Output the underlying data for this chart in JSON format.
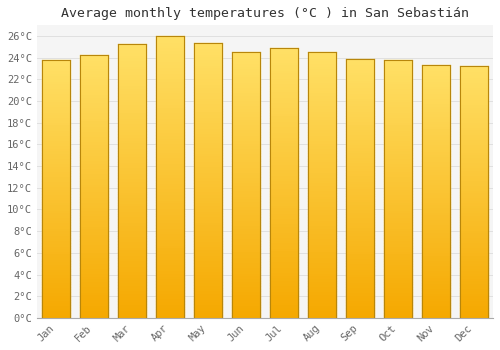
{
  "title": "Average monthly temperatures (°C ) in San Sebastián",
  "months": [
    "Jan",
    "Feb",
    "Mar",
    "Apr",
    "May",
    "Jun",
    "Jul",
    "Aug",
    "Sep",
    "Oct",
    "Nov",
    "Dec"
  ],
  "values": [
    23.8,
    24.3,
    25.3,
    26.0,
    25.4,
    24.5,
    24.9,
    24.5,
    23.9,
    23.8,
    23.3,
    23.2
  ],
  "bar_color_bottom": "#F5A800",
  "bar_color_top": "#FFE066",
  "bar_edge_color": "#B8860B",
  "background_color": "#FFFFFF",
  "plot_bg_color": "#F5F5F5",
  "grid_color": "#E0E0E0",
  "ylim": [
    0,
    27
  ],
  "ytick_step": 2,
  "title_fontsize": 9.5,
  "tick_fontsize": 7.5,
  "font_family": "monospace",
  "bar_width": 0.75
}
